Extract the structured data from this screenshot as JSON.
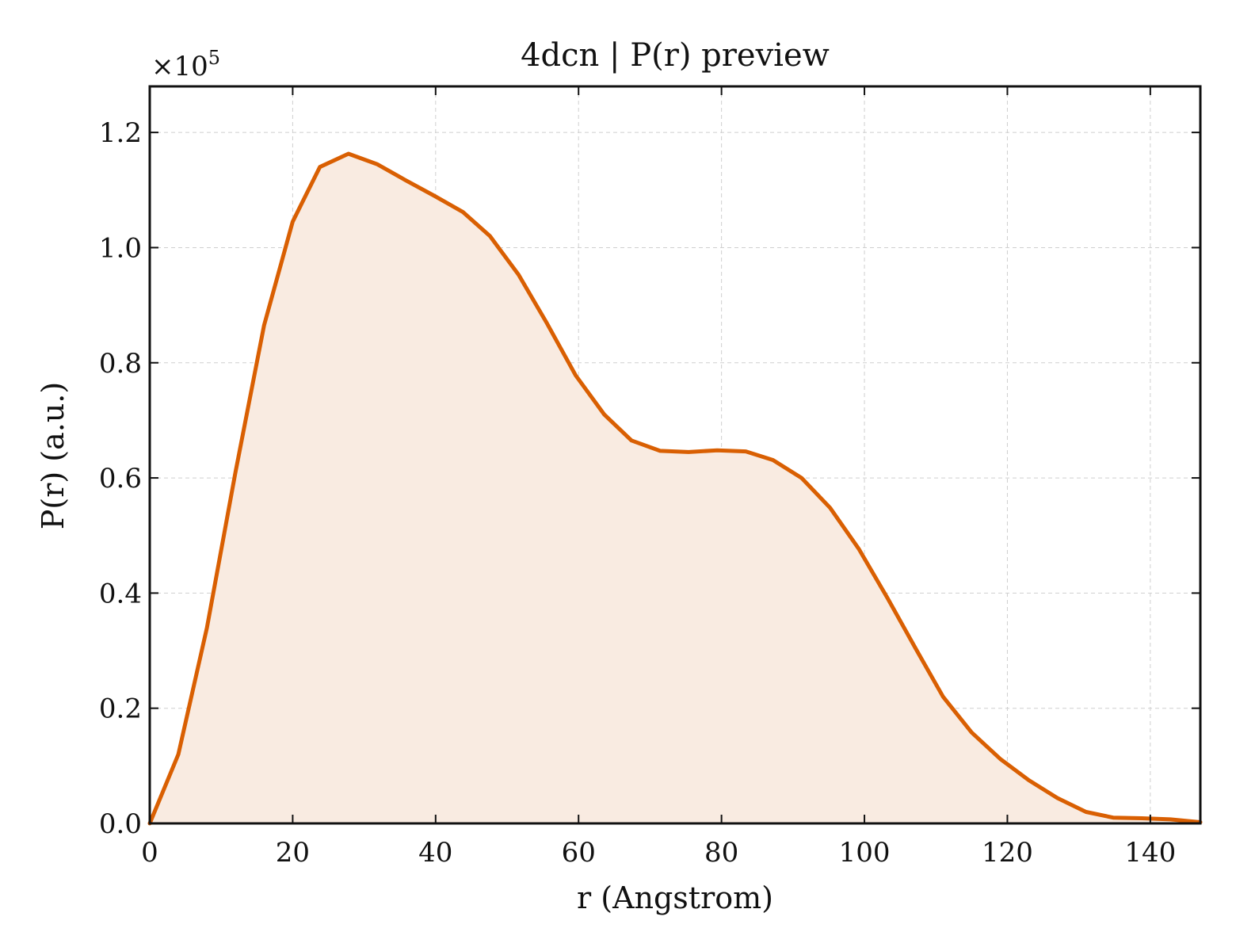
{
  "chart_data": {
    "type": "area",
    "title": "4dcn | P(r) preview",
    "xlabel": "r (Angstrom)",
    "ylabel": "P(r) (a.u.)",
    "y_multiplier": {
      "base": "×10",
      "exponent": "5"
    },
    "xlim": [
      0,
      147
    ],
    "ylim": [
      0,
      1.28
    ],
    "x_ticks": [
      0,
      20,
      40,
      60,
      80,
      100,
      120,
      140
    ],
    "x_tick_labels": [
      "0",
      "20",
      "40",
      "60",
      "80",
      "100",
      "120",
      "140"
    ],
    "y_ticks": [
      0,
      0.2,
      0.4,
      0.6,
      0.8,
      1.0,
      1.2
    ],
    "y_tick_labels": [
      "0.0",
      "0.2",
      "0.4",
      "0.6",
      "0.8",
      "1.0",
      "1.2"
    ],
    "grid": true,
    "series": [
      {
        "color": "#d95f02",
        "fill_color": "#f9ebe1",
        "x": [
          0,
          4,
          8,
          12,
          16,
          20,
          23.8,
          27.8,
          31.8,
          35.8,
          39.8,
          43.8,
          47.6,
          51.6,
          55.6,
          59.6,
          63.6,
          67.4,
          71.4,
          75.4,
          79.4,
          83.4,
          87.2,
          91.2,
          95.2,
          99.2,
          103.2,
          107.2,
          111,
          115,
          119,
          123,
          127,
          131,
          134.8,
          138.8,
          142.8,
          147
        ],
        "values": [
          0,
          0.12,
          0.34,
          0.61,
          0.865,
          1.045,
          1.14,
          1.163,
          1.145,
          1.117,
          1.09,
          1.062,
          1.02,
          0.953,
          0.868,
          0.778,
          0.71,
          0.665,
          0.647,
          0.645,
          0.648,
          0.646,
          0.631,
          0.6,
          0.548,
          0.477,
          0.392,
          0.303,
          0.22,
          0.158,
          0.112,
          0.075,
          0.044,
          0.02,
          0.01,
          0.009,
          0.007,
          0.002
        ]
      }
    ]
  }
}
